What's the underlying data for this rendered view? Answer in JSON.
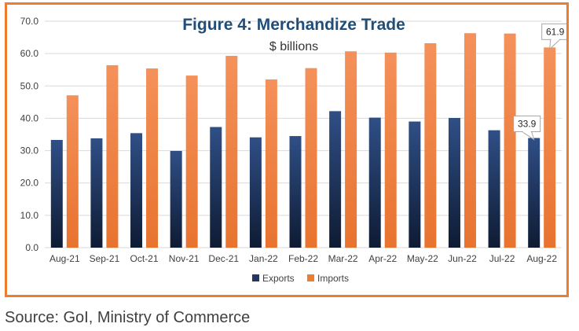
{
  "chart_data": {
    "type": "bar",
    "title": "Figure 4: Merchandize Trade",
    "subtitle": "$ billions",
    "categories": [
      "Aug-21",
      "Sep-21",
      "Oct-21",
      "Nov-21",
      "Dec-21",
      "Jan-22",
      "Feb-22",
      "Mar-22",
      "Apr-22",
      "May-22",
      "Jun-22",
      "Jul-22",
      "Aug-22"
    ],
    "series": [
      {
        "name": "Exports",
        "color": "#1F3864",
        "values": [
          33.3,
          33.8,
          35.4,
          29.9,
          37.3,
          34.1,
          34.5,
          42.2,
          40.2,
          39.0,
          40.1,
          36.3,
          33.9
        ]
      },
      {
        "name": "Imports",
        "color": "#ED7D31",
        "values": [
          47.1,
          56.4,
          55.4,
          53.2,
          59.3,
          52.0,
          55.5,
          60.7,
          60.3,
          63.2,
          66.3,
          66.2,
          61.9
        ]
      }
    ],
    "ylim": [
      0,
      70
    ],
    "yticks": [
      "0.0",
      "10.0",
      "20.0",
      "30.0",
      "40.0",
      "50.0",
      "60.0",
      "70.0"
    ],
    "grid": true,
    "legend_position": "bottom",
    "callouts": [
      {
        "series": "Exports",
        "category": "Aug-22",
        "label": "33.9"
      },
      {
        "series": "Imports",
        "category": "Aug-22",
        "label": "61.9"
      }
    ]
  },
  "source": "Source: GoI, Ministry of Commerce",
  "colors": {
    "border": "#ED7D31",
    "title": "#1F4E79"
  }
}
